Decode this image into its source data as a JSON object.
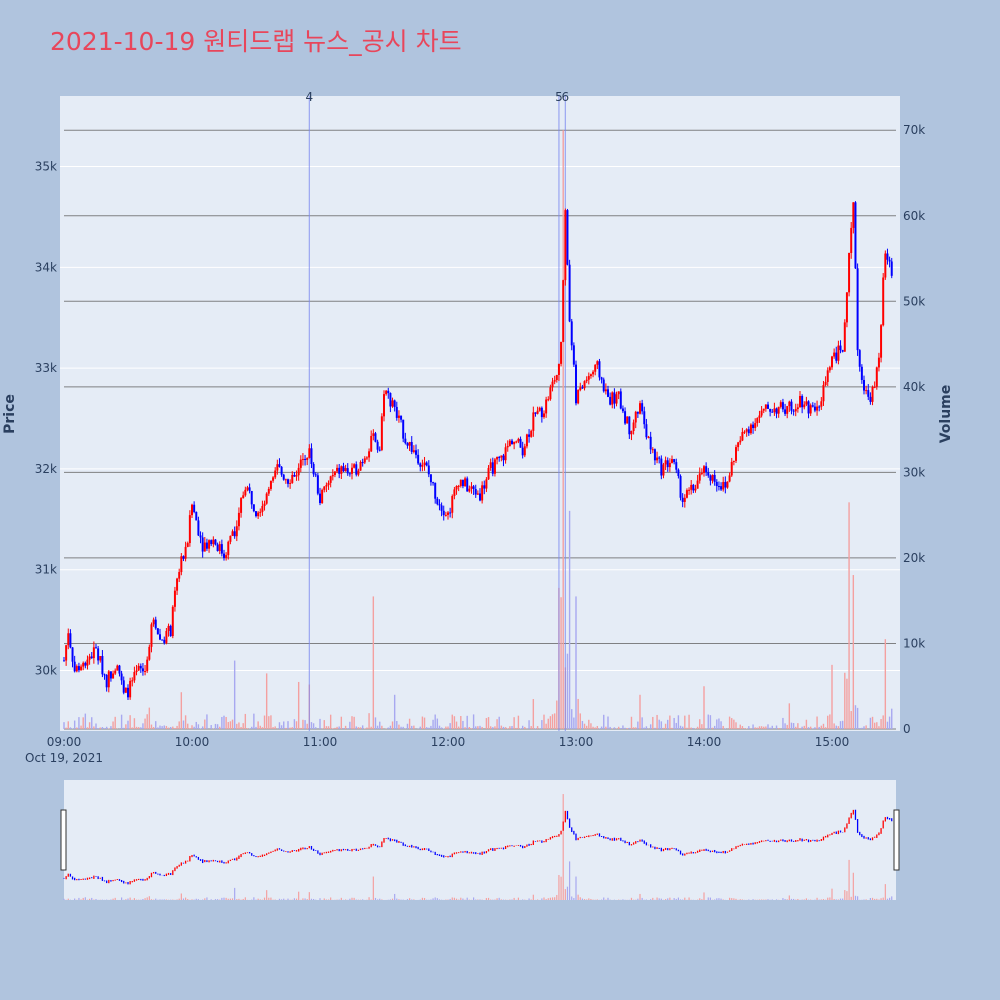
{
  "title": "2021-10-19 원티드랩 뉴스_공시 차트",
  "colors": {
    "up": "#ff0000",
    "down": "#0000ff",
    "background": "#b0c4de",
    "plot": "#e5ecf6",
    "title": "#e8465b"
  },
  "chart_data": {
    "type": "candlestick",
    "xlabel": "",
    "ylabel": "Price",
    "y2label": "Volume",
    "x_ticks": [
      "09:00",
      "10:00",
      "11:00",
      "12:00",
      "13:00",
      "14:00",
      "15:00"
    ],
    "x_date_label": "Oct 19, 2021",
    "x_range": [
      "09:00",
      "15:30"
    ],
    "y_ticks": [
      "30k",
      "31k",
      "32k",
      "33k",
      "34k",
      "35k"
    ],
    "y_tick_values": [
      30000,
      31000,
      32000,
      33000,
      34000,
      35000
    ],
    "ylim": [
      29400,
      35700
    ],
    "y2_ticks": [
      "0",
      "10k",
      "20k",
      "30k",
      "40k",
      "50k",
      "60k",
      "70k"
    ],
    "y2_tick_values": [
      0,
      10000,
      20000,
      30000,
      40000,
      50000,
      60000,
      70000
    ],
    "y2lim": [
      0,
      74000
    ],
    "news_markers": [
      {
        "label": "4",
        "time": "10:55"
      },
      {
        "label": "5",
        "time": "12:52"
      },
      {
        "label": "6",
        "time": "12:55"
      }
    ],
    "price_path": [
      [
        "09:00",
        30100
      ],
      [
        "09:02",
        30400
      ],
      [
        "09:05",
        30000
      ],
      [
        "09:10",
        30100
      ],
      [
        "09:15",
        30200
      ],
      [
        "09:20",
        29900
      ],
      [
        "09:25",
        30100
      ],
      [
        "09:28",
        29750
      ],
      [
        "09:30",
        29800
      ],
      [
        "09:35",
        30000
      ],
      [
        "09:38",
        30000
      ],
      [
        "09:40",
        30300
      ],
      [
        "09:42",
        30550
      ],
      [
        "09:45",
        30300
      ],
      [
        "09:50",
        30400
      ],
      [
        "09:53",
        30900
      ],
      [
        "09:55",
        31100
      ],
      [
        "09:58",
        31300
      ],
      [
        "10:00",
        31650
      ],
      [
        "10:05",
        31250
      ],
      [
        "10:10",
        31300
      ],
      [
        "10:15",
        31150
      ],
      [
        "10:20",
        31400
      ],
      [
        "10:25",
        31850
      ],
      [
        "10:30",
        31600
      ],
      [
        "10:35",
        31700
      ],
      [
        "10:40",
        32000
      ],
      [
        "10:45",
        31900
      ],
      [
        "10:50",
        32000
      ],
      [
        "10:55",
        32200
      ],
      [
        "11:00",
        31700
      ],
      [
        "11:05",
        31900
      ],
      [
        "11:10",
        32000
      ],
      [
        "11:15",
        31950
      ],
      [
        "11:20",
        32100
      ],
      [
        "11:25",
        32300
      ],
      [
        "11:28",
        32200
      ],
      [
        "11:30",
        32800
      ],
      [
        "11:35",
        32600
      ],
      [
        "11:40",
        32300
      ],
      [
        "11:45",
        32150
      ],
      [
        "11:50",
        32000
      ],
      [
        "11:55",
        31700
      ],
      [
        "12:00",
        31550
      ],
      [
        "12:05",
        31900
      ],
      [
        "12:10",
        31800
      ],
      [
        "12:15",
        31750
      ],
      [
        "12:20",
        32000
      ],
      [
        "12:25",
        32100
      ],
      [
        "12:30",
        32300
      ],
      [
        "12:35",
        32200
      ],
      [
        "12:40",
        32500
      ],
      [
        "12:45",
        32600
      ],
      [
        "12:50",
        32900
      ],
      [
        "12:53",
        33200
      ],
      [
        "12:55",
        34600
      ],
      [
        "12:57",
        33500
      ],
      [
        "13:00",
        32700
      ],
      [
        "13:05",
        32900
      ],
      [
        "13:10",
        33000
      ],
      [
        "13:15",
        32700
      ],
      [
        "13:20",
        32700
      ],
      [
        "13:25",
        32400
      ],
      [
        "13:30",
        32600
      ],
      [
        "13:35",
        32200
      ],
      [
        "13:40",
        32000
      ],
      [
        "13:45",
        32100
      ],
      [
        "13:50",
        31700
      ],
      [
        "13:55",
        31800
      ],
      [
        "14:00",
        32000
      ],
      [
        "14:05",
        31900
      ],
      [
        "14:10",
        31800
      ],
      [
        "14:15",
        32200
      ],
      [
        "14:20",
        32400
      ],
      [
        "14:25",
        32500
      ],
      [
        "14:30",
        32600
      ],
      [
        "14:35",
        32600
      ],
      [
        "14:40",
        32600
      ],
      [
        "14:45",
        32700
      ],
      [
        "14:50",
        32600
      ],
      [
        "14:55",
        32700
      ],
      [
        "15:00",
        33100
      ],
      [
        "15:05",
        33200
      ],
      [
        "15:10",
        34700
      ],
      [
        "15:12",
        33200
      ],
      [
        "15:15",
        32800
      ],
      [
        "15:17",
        32700
      ],
      [
        "15:20",
        32800
      ],
      [
        "15:22",
        33100
      ],
      [
        "15:25",
        34200
      ],
      [
        "15:28",
        33900
      ]
    ],
    "volume_spikes": [
      [
        "09:10",
        1800
      ],
      [
        "09:40",
        2500
      ],
      [
        "09:55",
        4300
      ],
      [
        "10:20",
        8000
      ],
      [
        "10:35",
        6500
      ],
      [
        "10:50",
        5500
      ],
      [
        "10:55",
        5200
      ],
      [
        "11:25",
        15500
      ],
      [
        "11:35",
        4000
      ],
      [
        "12:40",
        3500
      ],
      [
        "12:52",
        16500
      ],
      [
        "12:54",
        70000
      ],
      [
        "12:57",
        25500
      ],
      [
        "13:00",
        15500
      ],
      [
        "13:30",
        4000
      ],
      [
        "14:00",
        5000
      ],
      [
        "14:40",
        3000
      ],
      [
        "15:00",
        7500
      ],
      [
        "15:08",
        26500
      ],
      [
        "15:10",
        18000
      ],
      [
        "15:25",
        10500
      ],
      [
        "15:30",
        10000
      ]
    ]
  },
  "rangeslider": {
    "visible": true
  }
}
